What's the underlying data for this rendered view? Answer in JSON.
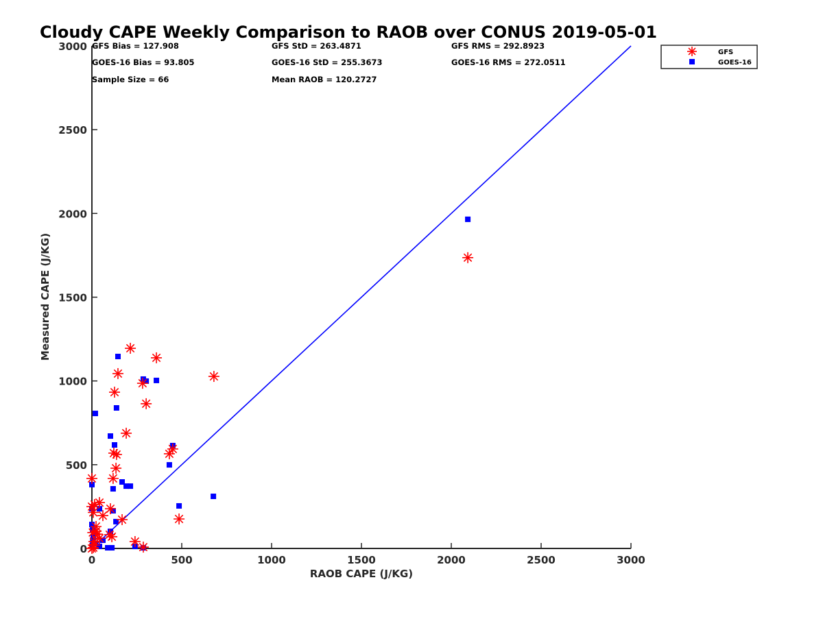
{
  "chart_data": {
    "type": "scatter",
    "title": "Cloudy CAPE Weekly Comparison to RAOB over CONUS 2019-05-01",
    "xlabel": "RAOB CAPE (J/KG)",
    "ylabel": "Measured CAPE (J/KG)",
    "xlim": [
      0,
      3000
    ],
    "ylim": [
      0,
      3000
    ],
    "xticks": [
      0,
      500,
      1000,
      1500,
      2000,
      2500,
      3000
    ],
    "yticks": [
      0,
      500,
      1000,
      1500,
      2000,
      2500,
      3000
    ],
    "xtick_labels": [
      "0",
      "500",
      "1000",
      "1500",
      "2000",
      "2500",
      "3000"
    ],
    "ytick_labels": [
      "0",
      "500",
      "1000",
      "1500",
      "2000",
      "2500",
      "3000"
    ],
    "grid": false,
    "legend_position": "top-right",
    "reference_line": {
      "name": "1:1 line",
      "x": [
        0,
        3000
      ],
      "y": [
        0,
        3000
      ],
      "color": "#0000ff"
    },
    "stats": [
      [
        "GFS Bias = 127.908",
        "GFS StD = 263.4871",
        "GFS RMS = 292.8923"
      ],
      [
        "GOES-16 Bias = 93.805",
        "GOES-16 StD = 255.3673",
        "GOES-16 RMS = 272.0511"
      ],
      [
        "Sample Size = 66",
        "Mean RAOB = 120.2727",
        ""
      ]
    ],
    "series": [
      {
        "name": "GFS",
        "marker": "asterisk",
        "color": "#ff0000",
        "points": [
          [
            214,
            1195
          ],
          [
            359,
            1138
          ],
          [
            145,
            1044
          ],
          [
            679,
            1027
          ],
          [
            282,
            986
          ],
          [
            126,
            933
          ],
          [
            302,
            864
          ],
          [
            191,
            688
          ],
          [
            122,
            569
          ],
          [
            137,
            561
          ],
          [
            431,
            565
          ],
          [
            450,
            594
          ],
          [
            134,
            479
          ],
          [
            118,
            418
          ],
          [
            0,
            418
          ],
          [
            42,
            274
          ],
          [
            0,
            250
          ],
          [
            15,
            262
          ],
          [
            103,
            237
          ],
          [
            61,
            196
          ],
          [
            8,
            215
          ],
          [
            168,
            172
          ],
          [
            485,
            176
          ],
          [
            23,
            131
          ],
          [
            23,
            102
          ],
          [
            5,
            95
          ],
          [
            99,
            82
          ],
          [
            111,
            70
          ],
          [
            240,
            41
          ],
          [
            286,
            8
          ],
          [
            11,
            41
          ],
          [
            42,
            61
          ],
          [
            30,
            85
          ],
          [
            0,
            0
          ],
          [
            15,
            20
          ],
          [
            8,
            5
          ],
          [
            2092,
            1736
          ]
        ]
      },
      {
        "name": "GOES-16",
        "marker": "square",
        "color": "#0000ff",
        "points": [
          [
            2092,
            1965
          ],
          [
            145,
            1146
          ],
          [
            286,
            1011
          ],
          [
            302,
            999
          ],
          [
            359,
            1003
          ],
          [
            19,
            806
          ],
          [
            137,
            839
          ],
          [
            103,
            671
          ],
          [
            126,
            618
          ],
          [
            450,
            614
          ],
          [
            431,
            499
          ],
          [
            168,
            397
          ],
          [
            191,
            372
          ],
          [
            214,
            372
          ],
          [
            118,
            356
          ],
          [
            0,
            381
          ],
          [
            676,
            311
          ],
          [
            485,
            254
          ],
          [
            0,
            237
          ],
          [
            42,
            237
          ],
          [
            118,
            225
          ],
          [
            0,
            143
          ],
          [
            134,
            160
          ],
          [
            103,
            102
          ],
          [
            61,
            49
          ],
          [
            42,
            12
          ],
          [
            88,
            4
          ],
          [
            111,
            4
          ],
          [
            240,
            12
          ],
          [
            286,
            4
          ],
          [
            2,
            16
          ],
          [
            5,
            45
          ],
          [
            8,
            70
          ],
          [
            12,
            90
          ],
          [
            4,
            110
          ],
          [
            20,
            30
          ]
        ]
      }
    ]
  }
}
